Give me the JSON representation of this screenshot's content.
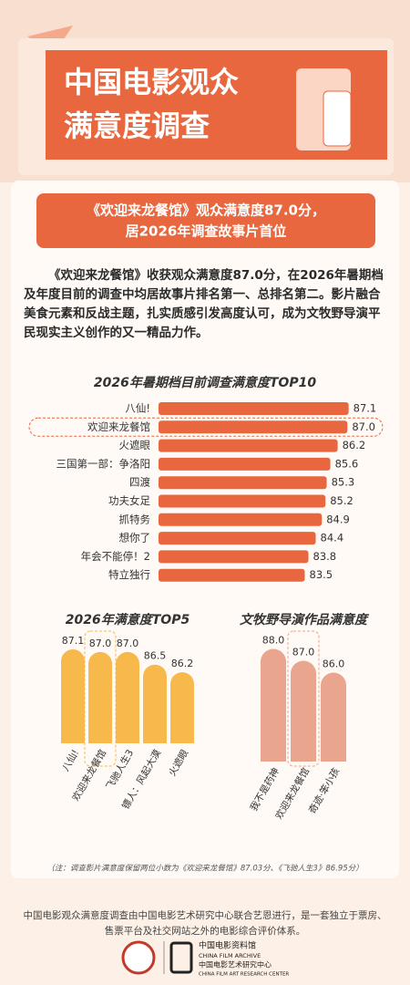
{
  "header": {
    "title_line1": "中国电影观众",
    "title_line2": "满意度调查"
  },
  "headline": {
    "line1": "《欢迎来龙餐馆》观众满意度87.0分，",
    "line2": "居2026年调查故事片首位"
  },
  "body": "《欢迎来龙餐馆》收获观众满意度87.0分，在2026年暑期档及年度目前的调查中均居故事片排名第一、总排名第二。影片融合美食元素和反战主题，扎实质感引发高度认可，成为文牧野导演平民现实主义创作的又一精品力作。",
  "chart_data": [
    {
      "type": "bar",
      "orientation": "horizontal",
      "title": "2026年暑期档目前调查满意度TOP10",
      "categories": [
        "八仙!",
        "欢迎来龙餐馆",
        "火遮眼",
        "三国第一部：争洛阳",
        "四渡",
        "功夫女足",
        "抓特务",
        "想你了",
        "年会不能停！2",
        "特立独行"
      ],
      "values": [
        87.1,
        87.0,
        86.2,
        85.6,
        85.3,
        85.2,
        84.9,
        84.4,
        83.8,
        83.5
      ],
      "value_labels": [
        "87.1",
        "87.0",
        "86.2",
        "85.6",
        "85.3",
        "85.2",
        "84.9",
        "84.4",
        "83.8",
        "83.5"
      ],
      "color": "#e8673f",
      "xlim": [
        71.5,
        87.5
      ],
      "highlight_index": 1
    },
    {
      "type": "bar",
      "orientation": "vertical",
      "title": "2026年满意度TOP5",
      "categories": [
        "八仙!",
        "欢迎来龙餐馆",
        "飞驰人生3",
        "镖人：风起大漠",
        "火遮眼"
      ],
      "values": [
        87.1,
        87.0,
        87.0,
        86.5,
        86.2
      ],
      "value_labels": [
        "87.1",
        "87.0",
        "87.0",
        "86.5",
        "86.2"
      ],
      "color": "#f7b84c",
      "ylim": [
        83.4,
        88
      ],
      "highlight_index": 1
    },
    {
      "type": "bar",
      "orientation": "vertical",
      "title": "文牧野导演作品满意度",
      "categories": [
        "我不是药神",
        "欢迎来龙餐馆",
        "奇迹·笨小孩"
      ],
      "values": [
        88.0,
        87.0,
        86.0
      ],
      "value_labels": [
        "88.0",
        "87.0",
        "86.0"
      ],
      "color": "#e9a58e",
      "ylim": [
        78.5,
        88.5
      ],
      "highlight_index": 1
    }
  ],
  "note": "（注：调查影片满意度保留两位小数为《欢迎来龙餐馆》87.03分、《飞驰人生3》86.95分）",
  "footer": {
    "text": "中国电影观众满意度调查由中国电影艺术研究中心联合艺恩进行，是一套独立于票房、售票平台及社交网站之外的电影综合评价体系。",
    "logo_cn": "中国电影资料馆",
    "logo_en": "CHINA FILM ARCHIVE",
    "logo_cn2": "中国电影艺术研究中心",
    "logo_en2": "CHINA FILM ART RESEARCH CENTER"
  }
}
